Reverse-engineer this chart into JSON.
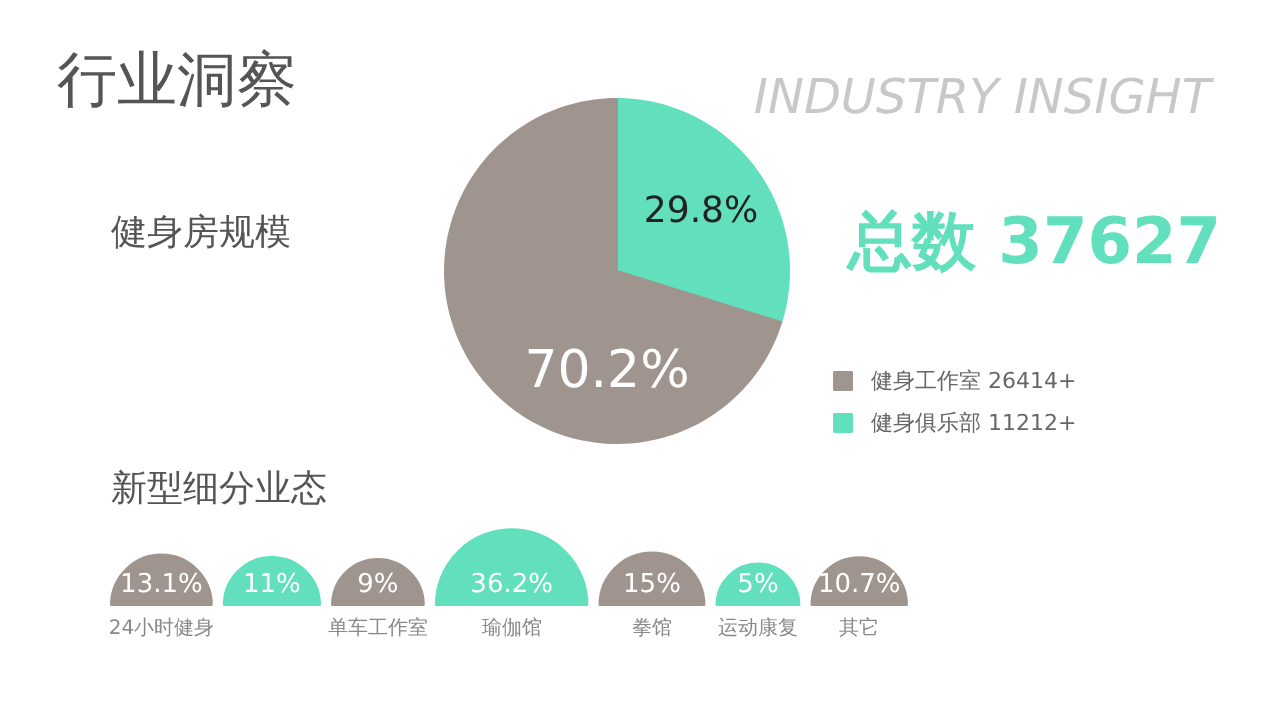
{
  "chart_data": [
    {
      "type": "pie",
      "title": "行业洞察",
      "subtitle": "INDUSTRY INSIGHT",
      "annotations": [
        "健身房规模",
        "总数 37627"
      ],
      "categories": [
        "健身工作室 26414+",
        "健身俱乐部 11212+"
      ],
      "values": [
        70.2,
        29.8
      ],
      "colors": [
        "#a0948e",
        "#62e0bd"
      ],
      "value_labels": [
        "70.2%",
        "29.8%"
      ],
      "legend": "right"
    },
    {
      "type": "other",
      "title": "新型细分业态",
      "categories": [
        "24小时健身",
        null,
        "单车工作室",
        "瑜伽馆",
        "拳馆",
        "运动康复",
        "其它"
      ],
      "values": [
        13.1,
        11,
        9,
        36.2,
        15,
        5,
        10.7
      ],
      "colors": [
        "#a0948e",
        "#62e0bd",
        "#a0948e",
        "#62e0bd",
        "#a0948e",
        "#62e0bd",
        "#a0948e"
      ],
      "value_labels": [
        "13.1%",
        "11%",
        "9%",
        "36.2%",
        "15%",
        "5%",
        "10.7%"
      ]
    }
  ]
}
